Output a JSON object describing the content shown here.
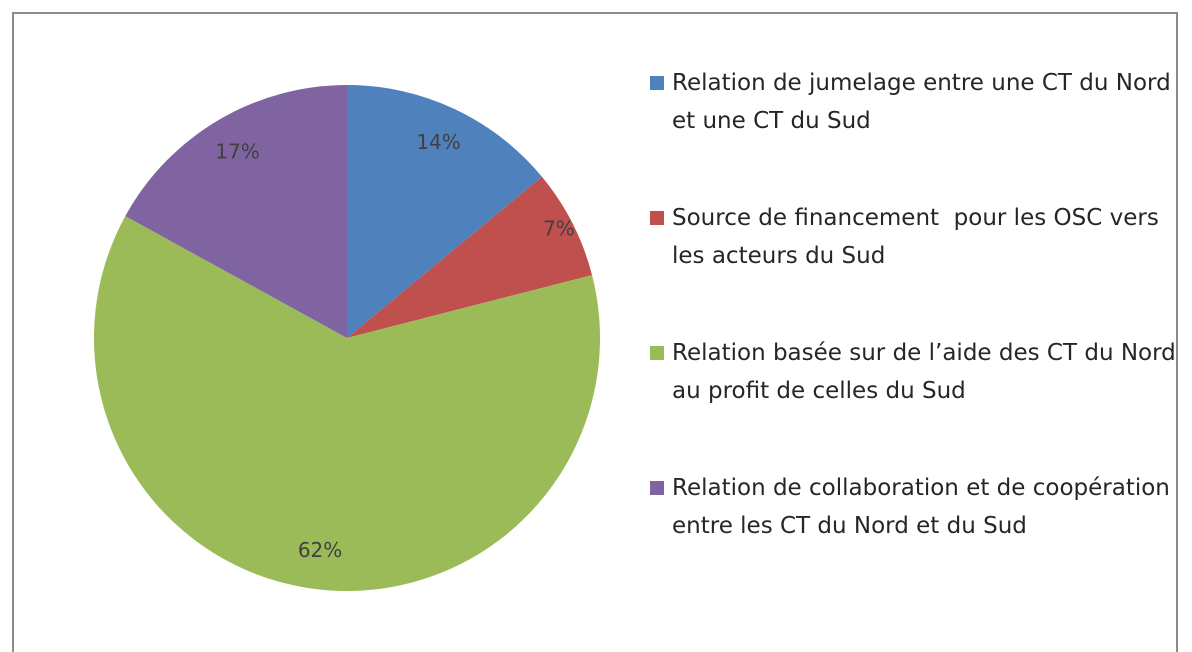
{
  "chart_data": {
    "type": "pie",
    "categories": [
      "Relation de jumelage entre une CT du Nord et une CT du Sud",
      "Source de financement  pour les OSC vers les acteurs du Sud",
      "Relation basée sur de l’aide des CT du Nord au profit de celles du Sud",
      "Relation de collaboration et de coopération entre les CT du Nord et du Sud"
    ],
    "values": [
      14,
      7,
      62,
      17
    ],
    "value_labels": [
      "14%",
      "7%",
      "62%",
      "17%"
    ],
    "colors": [
      "#4f81bd",
      "#c0504d",
      "#9bbb59",
      "#8064a2"
    ],
    "legend": "right"
  }
}
